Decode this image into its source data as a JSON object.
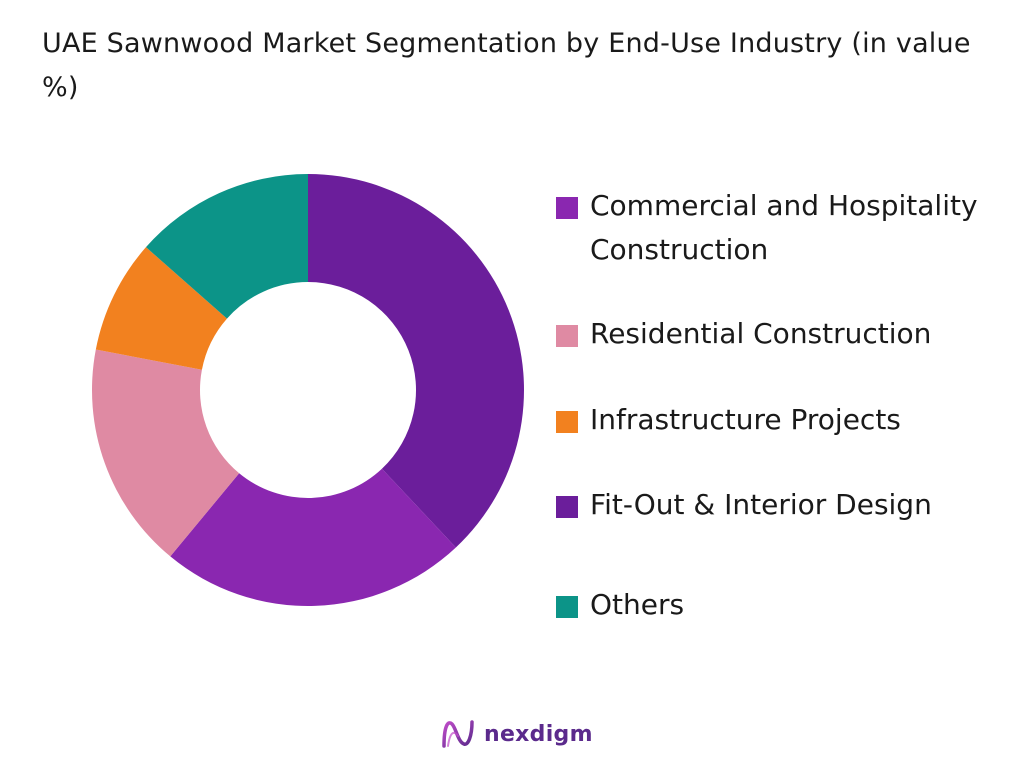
{
  "chart_data": {
    "type": "pie",
    "title": "UAE Sawnwood Market Segmentation by End-Use Industry (in value %)",
    "donut": true,
    "categories": [
      "Fit-Out & Interior Design",
      "Commercial and Hospitality Construction",
      "Residential Construction",
      "Infrastructure Projects",
      "Others"
    ],
    "values": [
      38,
      23,
      17,
      8.5,
      13.5
    ],
    "colors": [
      "#6b1e9b",
      "#8a27b0",
      "#df8aa3",
      "#f2811f",
      "#0c9488"
    ],
    "legend": [
      {
        "label": "Commercial and Hospitality Construction",
        "color": "#8a27b0"
      },
      {
        "label": "Residential Construction",
        "color": "#df8aa3"
      },
      {
        "label": "Infrastructure Projects",
        "color": "#f2811f"
      },
      {
        "label": "Fit-Out & Interior Design",
        "color": "#6b1e9b"
      },
      {
        "label": "Others",
        "color": "#0c9488"
      }
    ],
    "legend_position": "right"
  },
  "brand": {
    "name": "nexdigm"
  }
}
